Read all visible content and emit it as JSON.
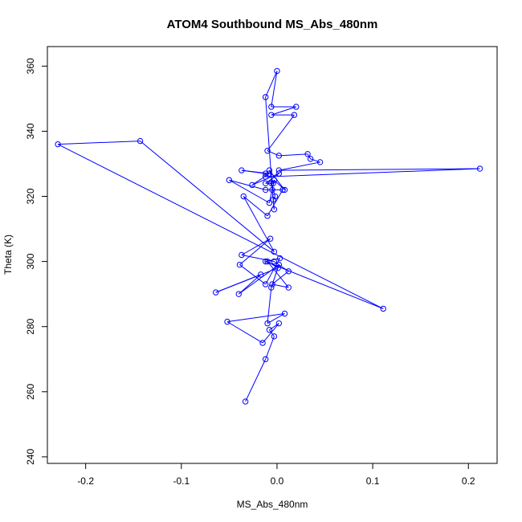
{
  "chart_data": {
    "type": "line",
    "title": "ATOM4 Southbound MS_Abs_480nm",
    "xlabel": "MS_Abs_480nm",
    "ylabel": "Theta (K)",
    "xlim": [
      -0.24,
      0.23
    ],
    "ylim": [
      238,
      366
    ],
    "xticks": [
      -0.2,
      -0.1,
      0.0,
      0.1,
      0.2
    ],
    "xtick_labels": [
      "-0.2",
      "-0.1",
      "0.0",
      "0.1",
      "0.2"
    ],
    "yticks": [
      240,
      260,
      280,
      300,
      320,
      340,
      360
    ],
    "ytick_labels": [
      "240",
      "260",
      "280",
      "300",
      "320",
      "340",
      "360"
    ],
    "grid": false,
    "legend": "none",
    "series_color": "#0000ff",
    "marker": "open-circle",
    "series": [
      {
        "x": [
          -0.033,
          -0.012,
          -0.003,
          -0.008,
          0.002,
          -0.015,
          -0.052,
          0.008,
          -0.01,
          -0.006,
          0.002,
          -0.04,
          -0.017,
          -0.064,
          0.001,
          -0.01,
          0.012,
          -0.005,
          0.012,
          -0.003,
          -0.037,
          -0.007,
          -0.039,
          -0.012,
          0.003,
          -0.012,
          0.111,
          -0.229,
          -0.143,
          -0.003,
          -0.035,
          -0.01,
          0.006,
          -0.012,
          -0.05,
          -0.008,
          -0.003,
          0.008,
          -0.008,
          -0.004,
          -0.012,
          0.002,
          -0.026,
          -0.008,
          -0.037,
          -0.012,
          -0.012,
          0.212,
          0.002,
          0.045,
          0.035,
          0.032,
          0.002,
          -0.01,
          0.018,
          -0.006,
          0.02,
          -0.006,
          0.0,
          -0.012,
          -0.005,
          -0.003,
          -0.004,
          -0.002,
          -0.006
        ],
        "y": [
          257,
          270,
          277,
          279,
          281,
          275,
          281.5,
          284,
          281,
          292,
          299,
          290,
          296,
          290.5,
          298,
          300,
          292,
          293,
          297,
          300,
          302,
          307,
          299,
          293,
          301,
          300,
          285.5,
          336,
          337,
          303,
          320,
          314,
          322,
          322,
          325,
          318,
          325,
          322,
          328,
          324,
          324,
          327,
          323.5,
          327,
          328,
          327,
          326,
          328.5,
          328,
          330.5,
          331.5,
          333,
          332.5,
          334,
          345,
          345,
          347.5,
          347.5,
          358.5,
          350.5,
          322,
          316,
          319,
          320,
          324
        ]
      }
    ]
  }
}
